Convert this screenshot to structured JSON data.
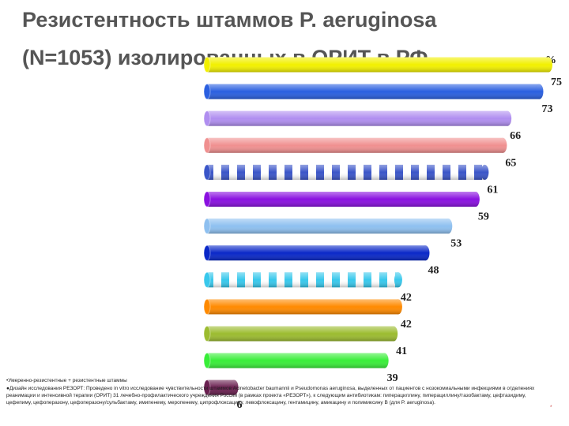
{
  "chart_data": {
    "type": "bar",
    "orientation": "horizontal",
    "title": [
      "Резистентность  штаммов P. aeruginosa",
      "(N=1053)  изолированных в ОРИТ в  РФ"
    ],
    "unit": "%",
    "values": [
      75,
      73,
      66,
      65,
      61,
      59,
      53,
      48,
      42,
      42,
      41,
      39,
      6
    ],
    "colors": [
      "#f2f000",
      "#2a5fe0",
      "#b08ef0",
      "#f09090",
      "#3a55c8",
      "#8a10e0",
      "#8ec0f0",
      "#0a28c8",
      "#38c8ec",
      "#ff8a00",
      "#9cbc30",
      "#38ee38",
      "#6a2050"
    ],
    "striped": [
      false,
      false,
      false,
      false,
      true,
      false,
      false,
      false,
      true,
      false,
      false,
      false,
      false
    ],
    "footnotes": [
      "•Умеренно-резистентные + резистентные штаммы",
      "●Дизайн исследования РЕЗОРТ: Проведено in vitro исследование чувствительности штаммов Acinetobacter baumannii и Pseudomonas aeruginosa, выделенных от пациентов с нозокомиальными инфекциями в отделениях реанимации и интенсивной терапии (ОРИТ) 31 лечебно-профилактического учреждения России (в рамках проекта «РЕЗОРТ»), к следующим антибиотикам: пиперациллину, пиперациллину/тазобактаму, цефтазидиму, цефепиму, цефоперазону, цефоперазону/сульбактаму, имипенему, меропенему, ципрофлоксацину, левофлоксацину, гентамицину, амикацину и полимиксину В (для P. aeruginosa).",
      "*"
    ]
  }
}
